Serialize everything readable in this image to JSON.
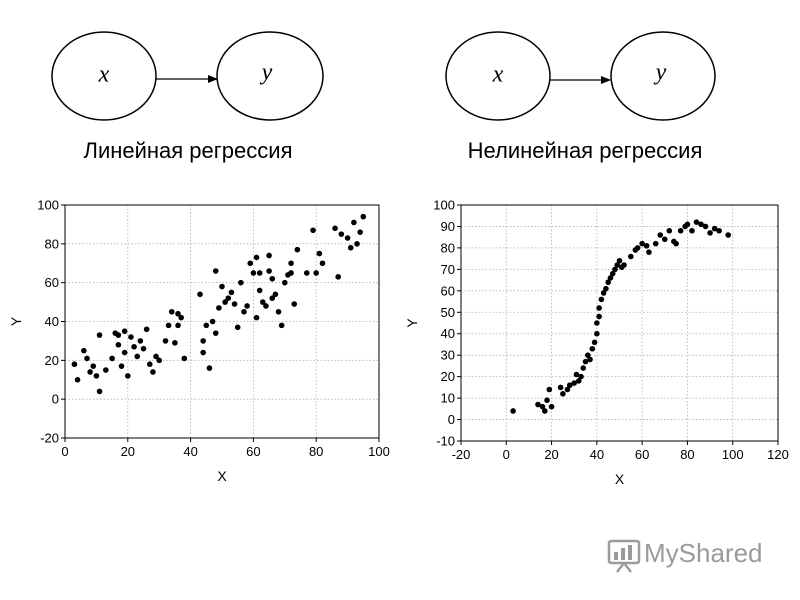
{
  "diagrams": [
    {
      "left_node": "x",
      "right_node": "y",
      "caption": "Линейная регрессия"
    },
    {
      "left_node": "x",
      "right_node": "y",
      "caption": "Нелинейная регрессия"
    }
  ],
  "watermark": {
    "text": "MyShared",
    "icon": "presentation-board-icon",
    "color": "#9a9a9a"
  },
  "chart_data": [
    {
      "type": "scatter",
      "title": "",
      "xlabel": "X",
      "ylabel": "Y",
      "xlim": [
        0,
        100
      ],
      "ylim": [
        -20,
        100
      ],
      "xticks": [
        0,
        20,
        40,
        60,
        80,
        100
      ],
      "yticks": [
        -20,
        0,
        20,
        40,
        60,
        80,
        100
      ],
      "grid": true,
      "grid_style": "dotted",
      "marker_color": "#000000",
      "points": [
        [
          3,
          18
        ],
        [
          4,
          10
        ],
        [
          6,
          25
        ],
        [
          7,
          21
        ],
        [
          8,
          14
        ],
        [
          9,
          17
        ],
        [
          10,
          12
        ],
        [
          11,
          4
        ],
        [
          11,
          33
        ],
        [
          13,
          15
        ],
        [
          15,
          21
        ],
        [
          16,
          34
        ],
        [
          17,
          28
        ],
        [
          17,
          33
        ],
        [
          18,
          17
        ],
        [
          19,
          35
        ],
        [
          19,
          24
        ],
        [
          20,
          12
        ],
        [
          21,
          32
        ],
        [
          22,
          27
        ],
        [
          23,
          22
        ],
        [
          24,
          30
        ],
        [
          25,
          26
        ],
        [
          26,
          36
        ],
        [
          27,
          18
        ],
        [
          28,
          14
        ],
        [
          29,
          22
        ],
        [
          30,
          20
        ],
        [
          32,
          30
        ],
        [
          33,
          38
        ],
        [
          34,
          45
        ],
        [
          35,
          29
        ],
        [
          36,
          44
        ],
        [
          36,
          38
        ],
        [
          37,
          42
        ],
        [
          38,
          21
        ],
        [
          43,
          54
        ],
        [
          44,
          30
        ],
        [
          44,
          24
        ],
        [
          45,
          38
        ],
        [
          46,
          16
        ],
        [
          47,
          40
        ],
        [
          48,
          34
        ],
        [
          48,
          66
        ],
        [
          49,
          47
        ],
        [
          50,
          58
        ],
        [
          51,
          50
        ],
        [
          52,
          52
        ],
        [
          53,
          55
        ],
        [
          54,
          49
        ],
        [
          55,
          37
        ],
        [
          56,
          60
        ],
        [
          57,
          45
        ],
        [
          58,
          48
        ],
        [
          59,
          70
        ],
        [
          60,
          65
        ],
        [
          61,
          73
        ],
        [
          61,
          42
        ],
        [
          62,
          56
        ],
        [
          62,
          65
        ],
        [
          63,
          50
        ],
        [
          64,
          48
        ],
        [
          65,
          74
        ],
        [
          65,
          66
        ],
        [
          66,
          62
        ],
        [
          66,
          52
        ],
        [
          67,
          54
        ],
        [
          68,
          45
        ],
        [
          69,
          38
        ],
        [
          70,
          60
        ],
        [
          71,
          64
        ],
        [
          72,
          65
        ],
        [
          72,
          70
        ],
        [
          73,
          49
        ],
        [
          74,
          77
        ],
        [
          77,
          65
        ],
        [
          79,
          87
        ],
        [
          80,
          65
        ],
        [
          81,
          75
        ],
        [
          82,
          70
        ],
        [
          86,
          88
        ],
        [
          87,
          63
        ],
        [
          88,
          85
        ],
        [
          90,
          83
        ],
        [
          91,
          78
        ],
        [
          92,
          91
        ],
        [
          93,
          80
        ],
        [
          94,
          86
        ],
        [
          95,
          94
        ]
      ]
    },
    {
      "type": "scatter",
      "title": "",
      "xlabel": "X",
      "ylabel": "Y",
      "xlim": [
        -20,
        120
      ],
      "ylim": [
        -10,
        100
      ],
      "xticks": [
        -20,
        0,
        20,
        40,
        60,
        80,
        100,
        120
      ],
      "yticks": [
        -10,
        0,
        10,
        20,
        30,
        40,
        50,
        60,
        70,
        80,
        90,
        100
      ],
      "grid": true,
      "grid_style": "dotted",
      "marker_color": "#000000",
      "points": [
        [
          3,
          4
        ],
        [
          14,
          7
        ],
        [
          16,
          6
        ],
        [
          17,
          4
        ],
        [
          18,
          9
        ],
        [
          19,
          14
        ],
        [
          20,
          6
        ],
        [
          24,
          15
        ],
        [
          25,
          12
        ],
        [
          27,
          14
        ],
        [
          28,
          16
        ],
        [
          30,
          17
        ],
        [
          31,
          21
        ],
        [
          32,
          18
        ],
        [
          33,
          20
        ],
        [
          34,
          24
        ],
        [
          35,
          27
        ],
        [
          36,
          30
        ],
        [
          37,
          28
        ],
        [
          38,
          33
        ],
        [
          39,
          36
        ],
        [
          40,
          40
        ],
        [
          40,
          45
        ],
        [
          41,
          48
        ],
        [
          41,
          52
        ],
        [
          42,
          56
        ],
        [
          43,
          59
        ],
        [
          44,
          61
        ],
        [
          45,
          64
        ],
        [
          46,
          66
        ],
        [
          47,
          68
        ],
        [
          48,
          70
        ],
        [
          49,
          72
        ],
        [
          50,
          74
        ],
        [
          51,
          71
        ],
        [
          52,
          72
        ],
        [
          55,
          76
        ],
        [
          57,
          79
        ],
        [
          58,
          80
        ],
        [
          60,
          82
        ],
        [
          62,
          81
        ],
        [
          63,
          78
        ],
        [
          66,
          82
        ],
        [
          68,
          86
        ],
        [
          70,
          84
        ],
        [
          72,
          88
        ],
        [
          74,
          83
        ],
        [
          75,
          82
        ],
        [
          77,
          88
        ],
        [
          79,
          90
        ],
        [
          80,
          91
        ],
        [
          82,
          88
        ],
        [
          84,
          92
        ],
        [
          86,
          91
        ],
        [
          88,
          90
        ],
        [
          90,
          87
        ],
        [
          92,
          89
        ],
        [
          94,
          88
        ],
        [
          98,
          86
        ]
      ]
    }
  ]
}
